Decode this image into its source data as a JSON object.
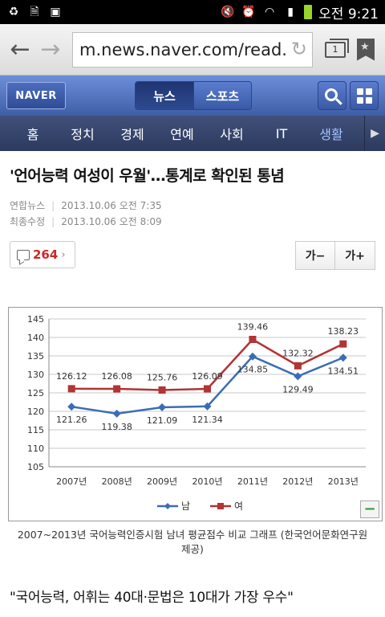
{
  "status": {
    "time": "오전 9:21"
  },
  "browser": {
    "url": "m.news.naver.com/read.",
    "tab_count": "1"
  },
  "header": {
    "logo": "NAVER",
    "tabs": [
      "뉴스",
      "스포츠"
    ],
    "active_tab": 0
  },
  "categories": {
    "items": [
      "홈",
      "정치",
      "경제",
      "연예",
      "사회",
      "IT",
      "생활"
    ],
    "active": 6
  },
  "article": {
    "headline": "'언어능력 여성이 우월'…통계로 확인된 통념",
    "source": "연합뉴스",
    "published_label": "2013.10.06 오전 7:35",
    "modified_prefix": "최종수정",
    "modified_label": "2013.10.06 오전 8:09",
    "comment_count": "264",
    "font_smaller": "가−",
    "font_larger": "가+",
    "caption": "2007~2013년 국어능력인증시험 남녀 평균점수 비교 그래프 (한국언어문화연구원 제공)",
    "subheading": "\"국어능력, 어휘는 40대·문법은 10대가 가장 우수\""
  },
  "chart_data": {
    "type": "line",
    "categories": [
      "2007년",
      "2008년",
      "2009년",
      "2010년",
      "2011년",
      "2012년",
      "2013년"
    ],
    "series": [
      {
        "name": "남",
        "color": "#3b6db5",
        "values": [
          121.26,
          119.38,
          121.09,
          121.34,
          134.85,
          129.49,
          134.51
        ]
      },
      {
        "name": "여",
        "color": "#b23434",
        "values": [
          126.12,
          126.08,
          125.76,
          126.09,
          139.46,
          132.32,
          138.23
        ]
      }
    ],
    "ylim": [
      105,
      145
    ],
    "yticks": [
      105,
      110,
      115,
      120,
      125,
      130,
      135,
      140,
      145
    ],
    "grid": true,
    "legend": "bottom"
  }
}
